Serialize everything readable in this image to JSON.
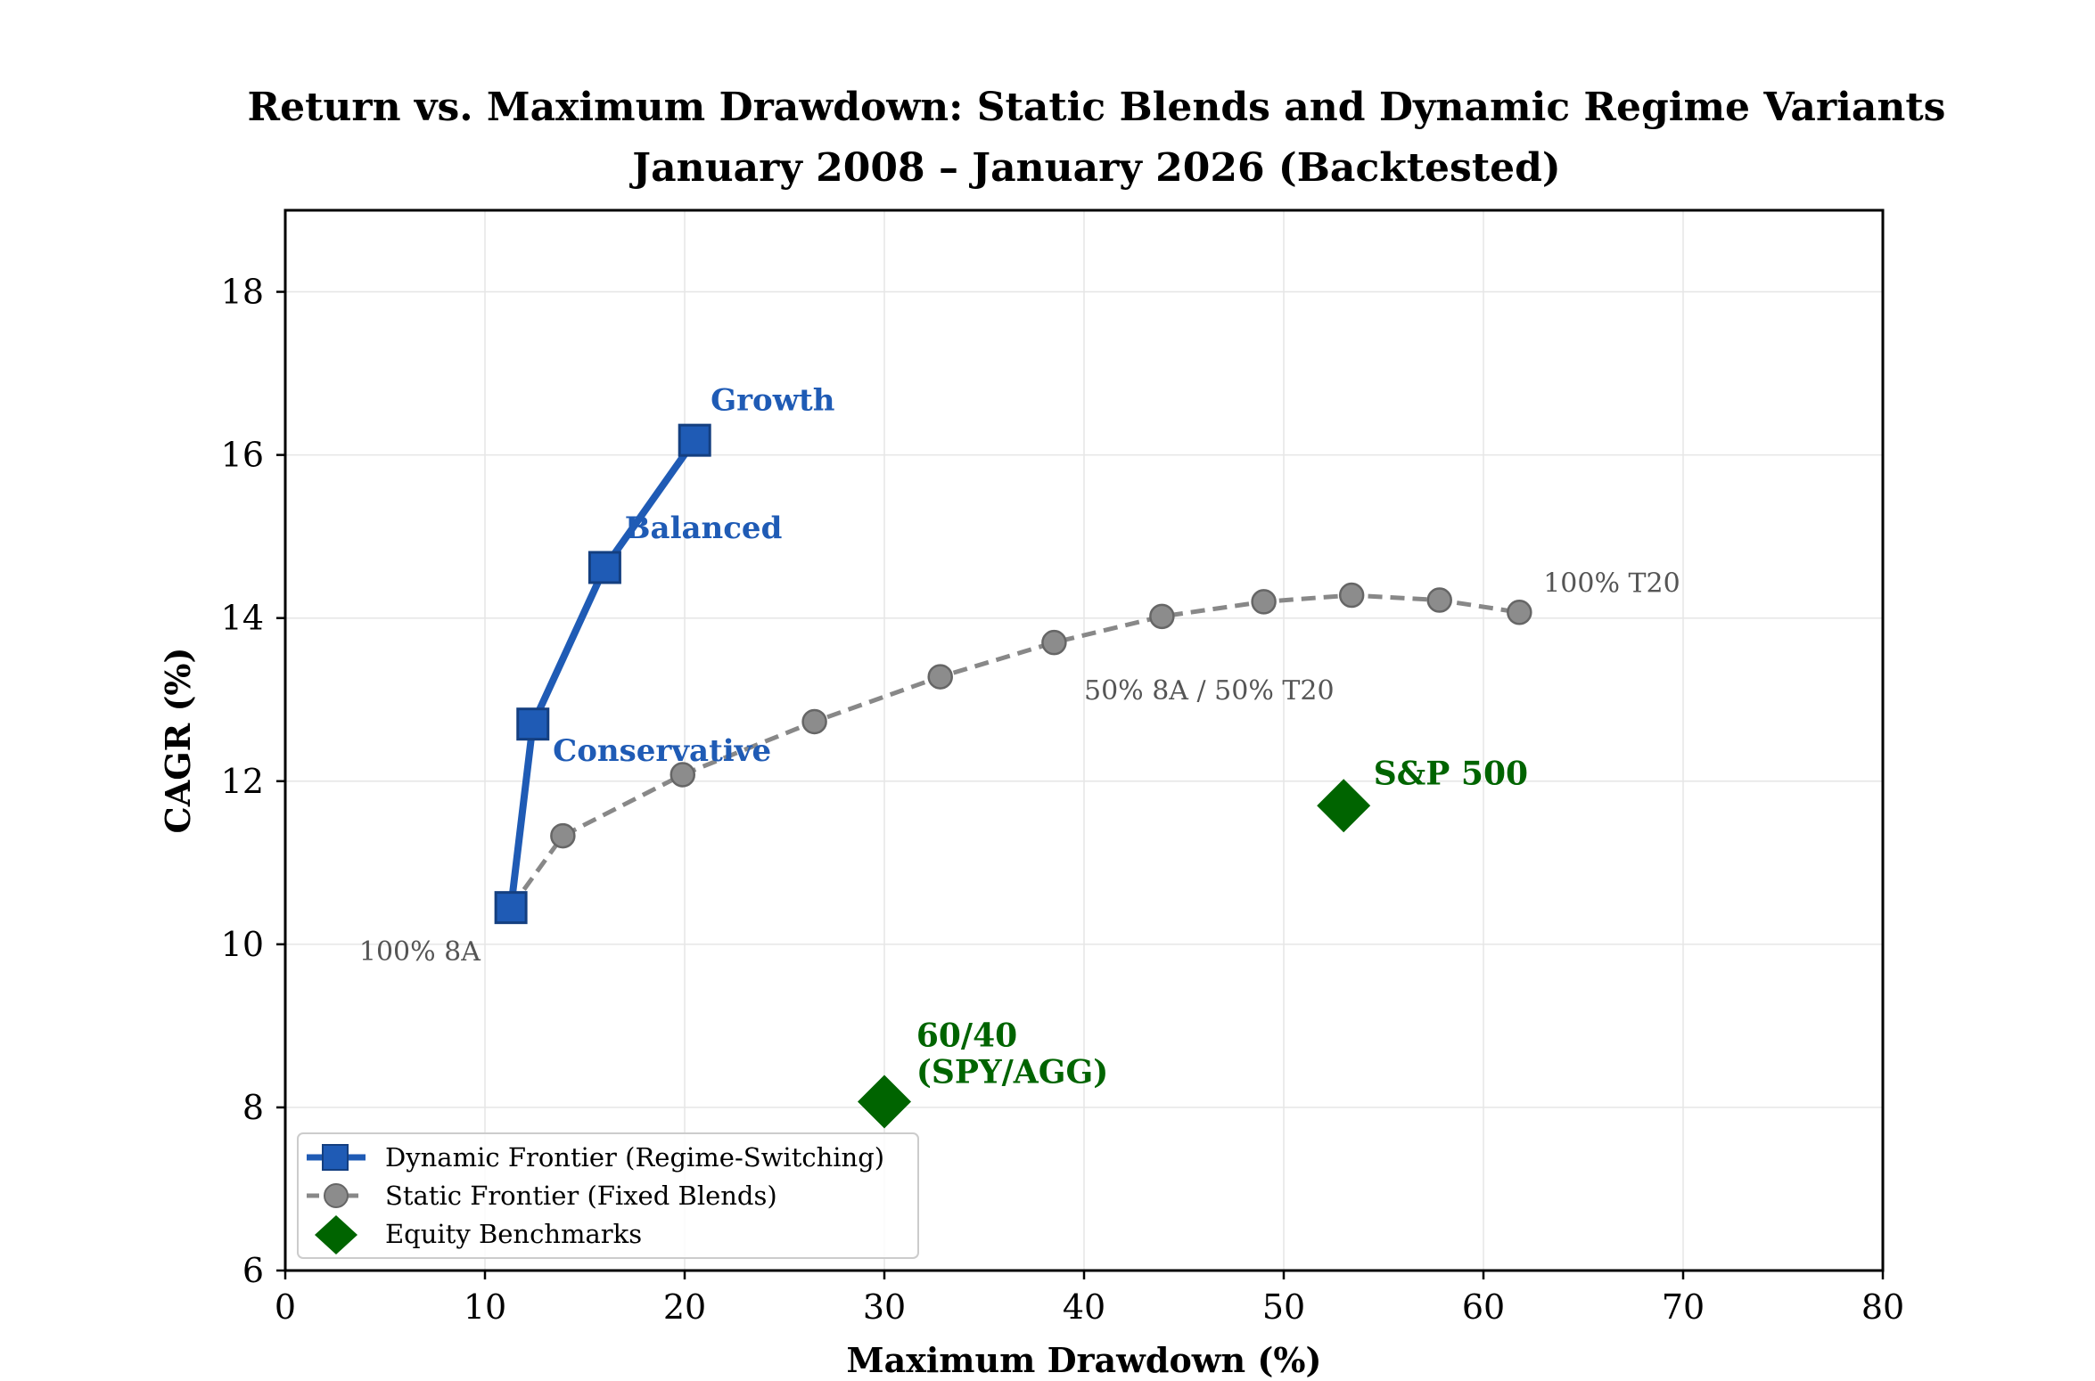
{
  "chart_data": {
    "type": "scatter",
    "title": "Return vs. Maximum Drawdown: Static Blends and Dynamic Regime Variants",
    "subtitle": "January 2008 – January 2026 (Backtested)",
    "xlabel": "Maximum Drawdown (%)",
    "ylabel": "CAGR (%)",
    "xlim": [
      0,
      80
    ],
    "ylim": [
      6,
      19
    ],
    "xticks": [
      0,
      10,
      20,
      30,
      40,
      50,
      60,
      70,
      80
    ],
    "yticks": [
      6,
      8,
      10,
      12,
      14,
      16,
      18
    ],
    "xtick_labels": [
      "0",
      "10",
      "20",
      "30",
      "40",
      "50",
      "60",
      "70",
      "80"
    ],
    "ytick_labels": [
      "6",
      "8",
      "10",
      "12",
      "14",
      "16",
      "18"
    ],
    "grid": true,
    "legend_position": "lower-left",
    "colors": {
      "dynamic": "#1f5bb5",
      "static": "#888888",
      "benchmark": "#006400"
    },
    "series": [
      {
        "name": "Dynamic Frontier (Regime-Switching)",
        "style": "line-square",
        "points": [
          {
            "x": 11.3,
            "y": 10.45
          },
          {
            "x": 12.4,
            "y": 12.7
          },
          {
            "x": 16.0,
            "y": 14.62
          },
          {
            "x": 20.5,
            "y": 16.18
          }
        ]
      },
      {
        "name": "Static Frontier (Fixed Blends)",
        "style": "dashed-circle",
        "points": [
          {
            "x": 11.3,
            "y": 10.45
          },
          {
            "x": 13.9,
            "y": 11.33
          },
          {
            "x": 19.9,
            "y": 12.08
          },
          {
            "x": 26.5,
            "y": 12.73
          },
          {
            "x": 32.8,
            "y": 13.28
          },
          {
            "x": 38.5,
            "y": 13.7
          },
          {
            "x": 43.9,
            "y": 14.02
          },
          {
            "x": 49.0,
            "y": 14.2
          },
          {
            "x": 53.4,
            "y": 14.28
          },
          {
            "x": 57.8,
            "y": 14.22
          },
          {
            "x": 61.8,
            "y": 14.07
          }
        ]
      },
      {
        "name": "Equity Benchmarks",
        "style": "diamond",
        "points": [
          {
            "x": 53.0,
            "y": 11.7
          },
          {
            "x": 30.0,
            "y": 8.07
          }
        ]
      }
    ],
    "annotations": [
      {
        "text": "Growth",
        "group": "dynamic",
        "x": 21.3,
        "y": 16.55
      },
      {
        "text": "Balanced",
        "group": "dynamic",
        "x": 17.0,
        "y": 14.98
      },
      {
        "text": "Conservative",
        "group": "dynamic",
        "x": 13.4,
        "y": 12.25
      },
      {
        "text": "S&P 500",
        "group": "benchmark",
        "x": 54.5,
        "y": 11.96
      },
      {
        "text": "60/40",
        "group": "benchmark",
        "x": 31.6,
        "y": 8.75
      },
      {
        "text": "(SPY/AGG)",
        "group": "benchmark",
        "x": 31.6,
        "y": 8.3
      },
      {
        "text": "100% T20",
        "group": "static",
        "x": 63.0,
        "y": 14.32
      },
      {
        "text": "50% 8A / 50% T20",
        "group": "static",
        "x": 40.0,
        "y": 13.0
      },
      {
        "text": "100% 8A",
        "group": "static",
        "x": 3.7,
        "y": 9.8
      }
    ]
  }
}
